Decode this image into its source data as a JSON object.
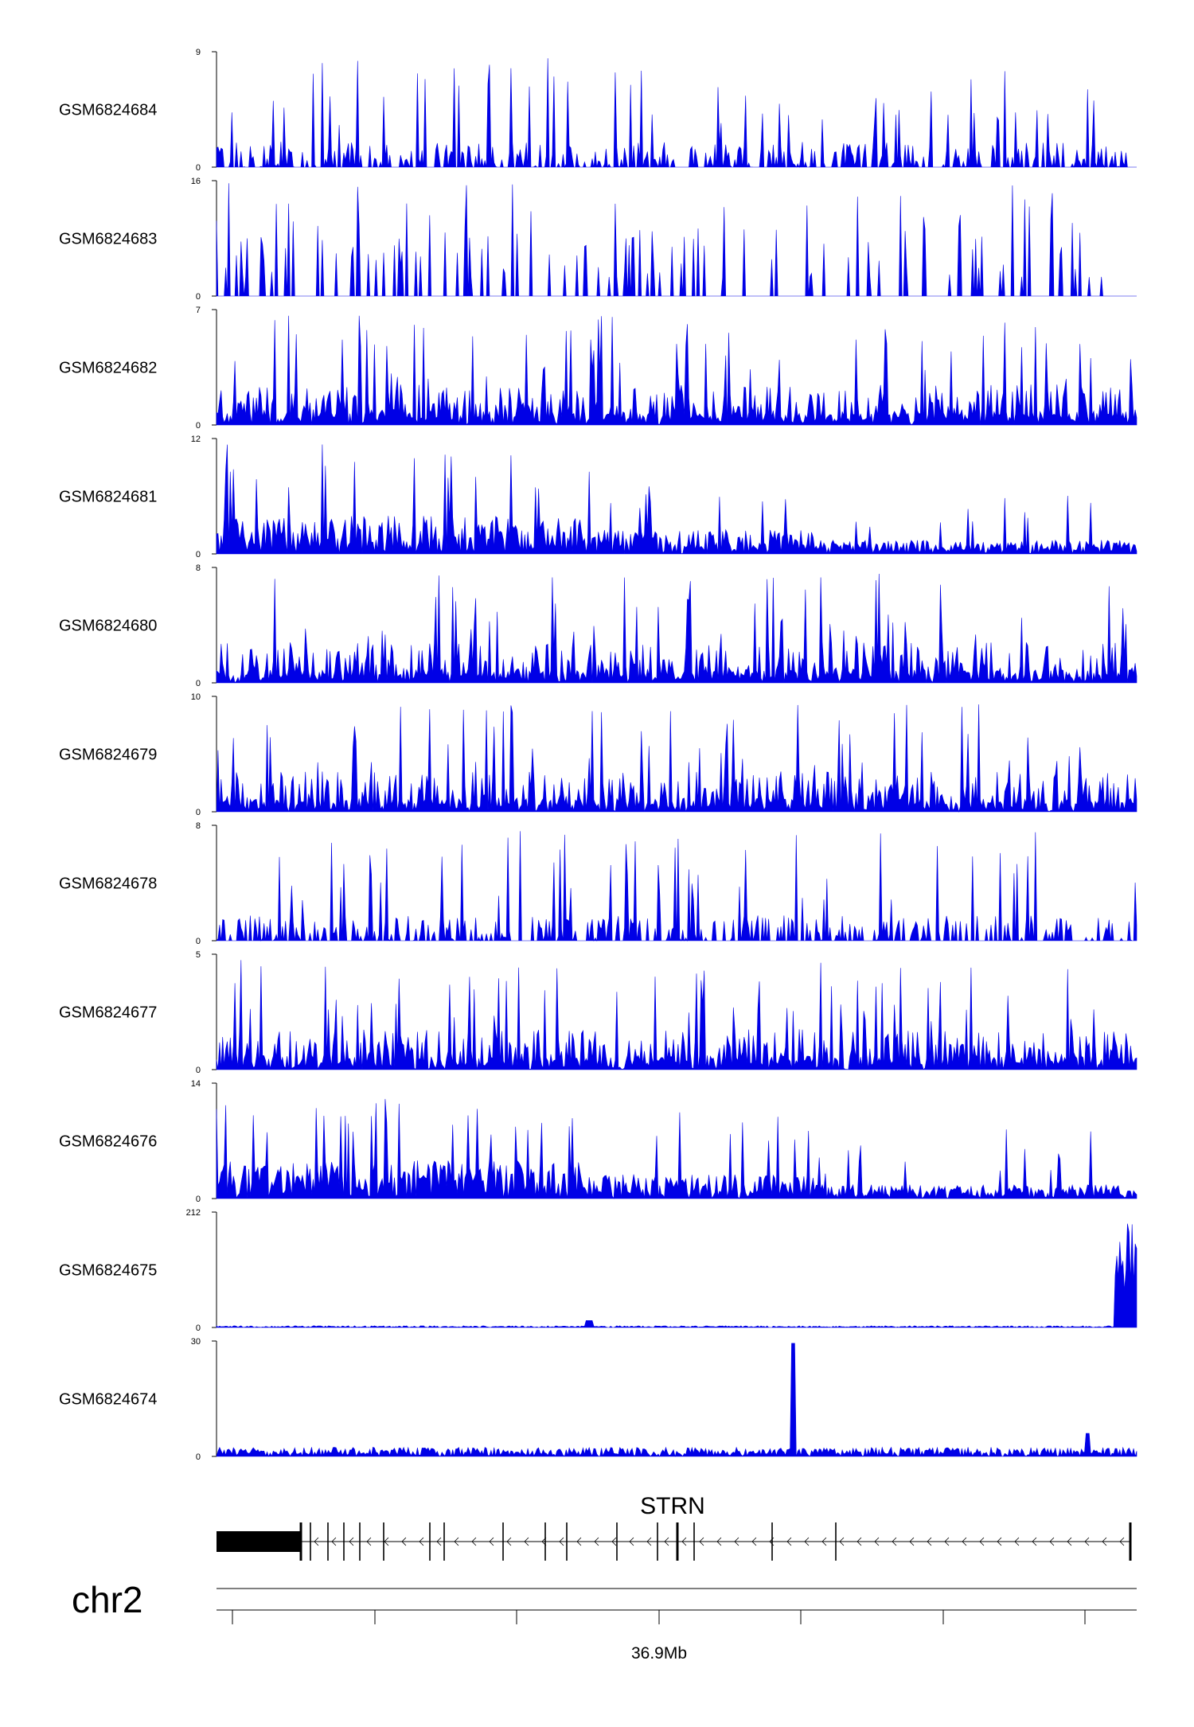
{
  "chart_data": {
    "type": "area",
    "genome_track_view": true,
    "chromosome": "chr2",
    "gene": {
      "name": "STRN",
      "strand": "-"
    },
    "x_axis": {
      "tick_label": "36.9Mb"
    },
    "signal_color": "#0000e6",
    "series": [
      {
        "name": "GSM6824684",
        "ylim": [
          0,
          9
        ],
        "pattern": "sparse-spikes"
      },
      {
        "name": "GSM6824683",
        "ylim": [
          0,
          16
        ],
        "pattern": "triangles"
      },
      {
        "name": "GSM6824682",
        "ylim": [
          0,
          7
        ],
        "pattern": "dense"
      },
      {
        "name": "GSM6824681",
        "ylim": [
          0,
          12
        ],
        "pattern": "broad-enriched-left"
      },
      {
        "name": "GSM6824680",
        "ylim": [
          0,
          8
        ],
        "pattern": "dense"
      },
      {
        "name": "GSM6824679",
        "ylim": [
          0,
          10
        ],
        "pattern": "dense"
      },
      {
        "name": "GSM6824678",
        "ylim": [
          0,
          8
        ],
        "pattern": "sparse-spikes"
      },
      {
        "name": "GSM6824677",
        "ylim": [
          0,
          5
        ],
        "pattern": "dense"
      },
      {
        "name": "GSM6824676",
        "ylim": [
          0,
          14
        ],
        "pattern": "broad-enriched-left"
      },
      {
        "name": "GSM6824675",
        "ylim": [
          0,
          212
        ],
        "pattern": "single-peak-right"
      },
      {
        "name": "GSM6824674",
        "ylim": [
          0,
          30
        ],
        "pattern": "single-peak-middle"
      }
    ]
  }
}
